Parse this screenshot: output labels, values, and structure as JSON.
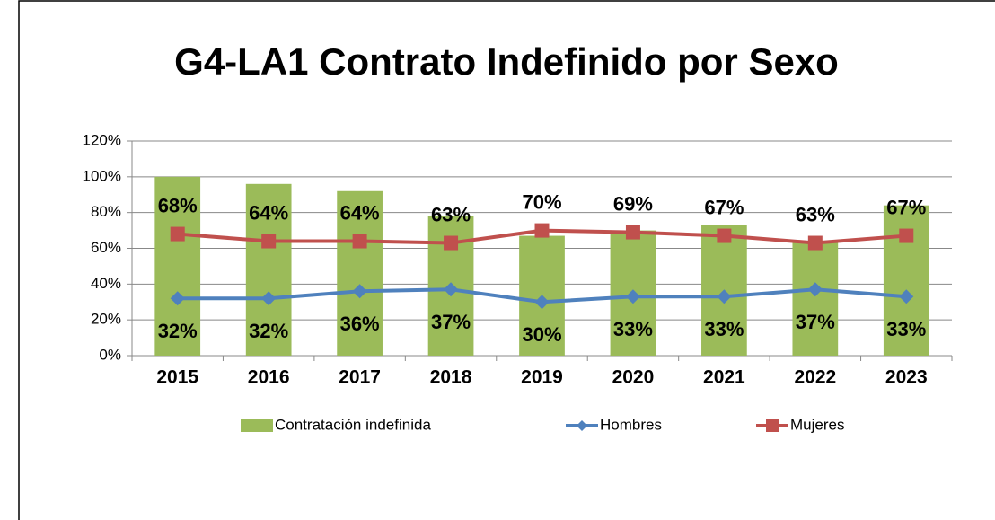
{
  "chart_data": {
    "type": "combo",
    "title": "G4-LA1 Contrato Indefinido por Sexo",
    "categories": [
      "2015",
      "2016",
      "2017",
      "2018",
      "2019",
      "2020",
      "2021",
      "2022",
      "2023"
    ],
    "series": [
      {
        "name": "Contratación indefinida",
        "type": "bar",
        "color": "#9bbb59",
        "values": [
          100,
          96,
          92,
          78,
          67,
          70,
          73,
          64,
          84
        ]
      },
      {
        "name": "Hombres",
        "type": "line",
        "color": "#4f81bd",
        "values": [
          32,
          32,
          36,
          37,
          30,
          33,
          33,
          37,
          33
        ],
        "value_labels": [
          "32%",
          "32%",
          "36%",
          "37%",
          "30%",
          "33%",
          "33%",
          "37%",
          "33%"
        ],
        "label_position": "below"
      },
      {
        "name": "Mujeres",
        "type": "line",
        "color": "#c0504d",
        "values": [
          68,
          64,
          64,
          63,
          70,
          69,
          67,
          63,
          67
        ],
        "value_labels": [
          "68%",
          "64%",
          "64%",
          "63%",
          "70%",
          "69%",
          "67%",
          "63%",
          "67%"
        ],
        "label_position": "above"
      }
    ],
    "ylim": [
      0,
      120
    ],
    "yticks": [
      {
        "value": 0,
        "label": "0%"
      },
      {
        "value": 20,
        "label": "20%"
      },
      {
        "value": 40,
        "label": "40%"
      },
      {
        "value": 60,
        "label": "60%"
      },
      {
        "value": 80,
        "label": "80%"
      },
      {
        "value": 100,
        "label": "100%"
      },
      {
        "value": 120,
        "label": "120%"
      }
    ],
    "grid": true,
    "legend": "bottom"
  }
}
